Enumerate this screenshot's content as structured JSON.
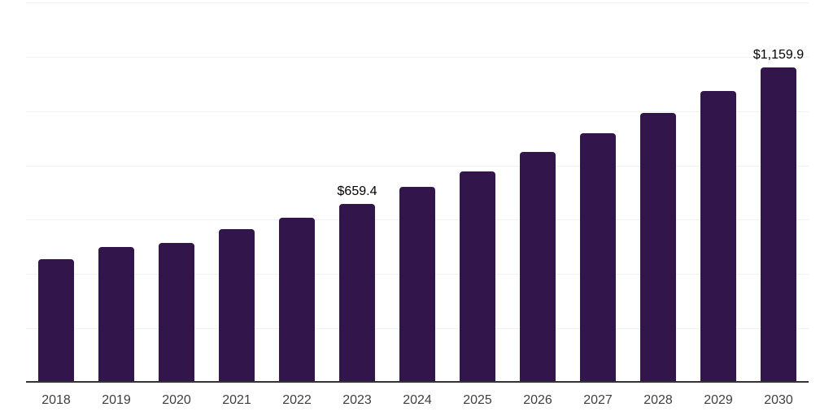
{
  "chart_data": {
    "type": "bar",
    "title": "",
    "xlabel": "",
    "ylabel": "",
    "categories": [
      "2018",
      "2019",
      "2020",
      "2021",
      "2022",
      "2023",
      "2024",
      "2025",
      "2026",
      "2027",
      "2028",
      "2029",
      "2030"
    ],
    "values": [
      456,
      499,
      514,
      564,
      607,
      659.4,
      720,
      778,
      849,
      917,
      992,
      1075,
      1159.9
    ],
    "data_labels": [
      "",
      "",
      "",
      "",
      "",
      "$659.4",
      "",
      "",
      "",
      "",
      "",
      "",
      "$1,159.9"
    ],
    "ylim": [
      0,
      1400
    ],
    "grid": true,
    "gridline_interval": 200,
    "gridline_count": 8,
    "legend_position": "none",
    "colors": {
      "bar": "#32154a",
      "axis_line": "#333333",
      "gridline": "#f1f1f1",
      "tick_label": "#3f3f3f",
      "data_label": "#000000",
      "background": "#ffffff"
    }
  }
}
